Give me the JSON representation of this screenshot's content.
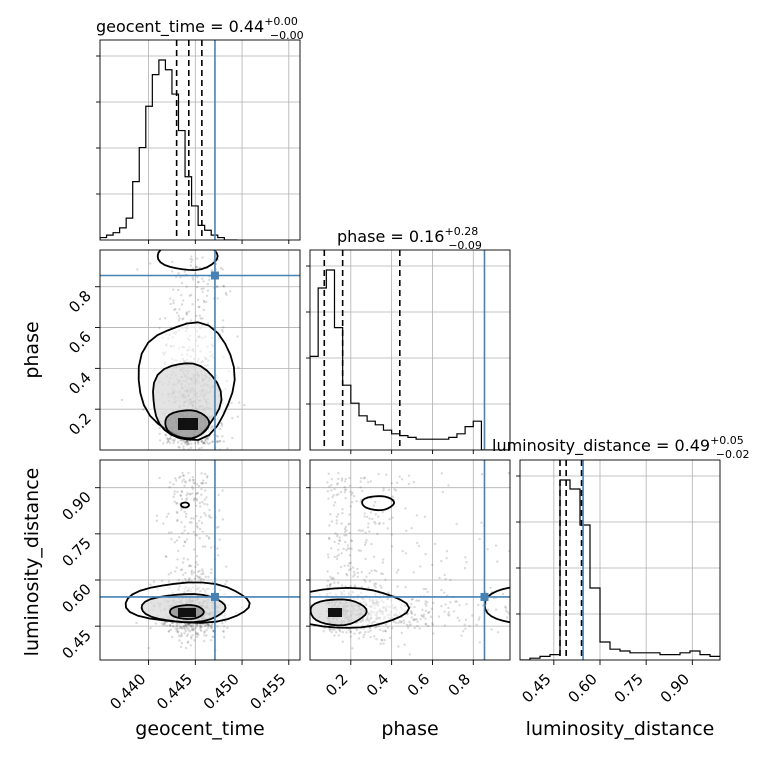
{
  "chart_data": {
    "type": "corner",
    "parameters": [
      "geocent_time",
      "phase",
      "luminosity_distance"
    ],
    "axis_labels": {
      "geocent_time": "geocent_time",
      "phase": "phase",
      "luminosity_distance": "luminosity_distance"
    },
    "ranges": {
      "geocent_time": [
        0.4348,
        0.4562
      ],
      "phase": [
        0.0,
        0.98
      ],
      "luminosity_distance": [
        0.34,
        0.99
      ]
    },
    "ticks": {
      "geocent_time": [
        "0.440",
        "0.445",
        "0.450",
        "0.455"
      ],
      "phase": [
        "0.2",
        "0.4",
        "0.6",
        "0.8"
      ],
      "luminosity_distance": [
        "0.45",
        "0.60",
        "0.75",
        "0.90"
      ]
    },
    "truths": {
      "geocent_time": 0.4471,
      "phase": 0.855,
      "luminosity_distance": 0.545
    },
    "titles": [
      {
        "param": "geocent_time",
        "text": "geocent_time = 0.44",
        "plus": "+0.00",
        "minus": "−0.00"
      },
      {
        "param": "phase",
        "text": "phase = 0.16",
        "plus": "+0.28",
        "minus": "−0.09"
      },
      {
        "param": "luminosity_distance",
        "text": "luminosity_distance = 0.49",
        "plus": "+0.05",
        "minus": "−0.02"
      }
    ],
    "histograms": {
      "geocent_time": {
        "edges_start": 0.4348,
        "bin_width": 0.0007,
        "counts": [
          1,
          2,
          3,
          5,
          9,
          24,
          38,
          55,
          68,
          74,
          70,
          60,
          45,
          26,
          14,
          6,
          4,
          2,
          1,
          0,
          0
        ]
      },
      "phase": {
        "edges_start": 0.0,
        "bin_width": 0.04,
        "counts": [
          52,
          90,
          100,
          68,
          36,
          26,
          19,
          16,
          14,
          11,
          9,
          8,
          7,
          6,
          6,
          6,
          6,
          7,
          9,
          13,
          16,
          0,
          0,
          0,
          0
        ]
      },
      "luminosity_distance": {
        "edges_start": 0.34,
        "bin_width": 0.0325,
        "counts": [
          0,
          1,
          2,
          3,
          100,
          95,
          75,
          40,
          10,
          6,
          5,
          4,
          4,
          4,
          3,
          3,
          4,
          5,
          3,
          2
        ]
      }
    },
    "quantiles": {
      "geocent_time": [
        0.443,
        0.4443,
        0.4457
      ],
      "phase": [
        0.07,
        0.16,
        0.44
      ],
      "luminosity_distance": [
        0.47,
        0.49,
        0.54
      ]
    },
    "grid": true,
    "contour_levels": 3
  }
}
